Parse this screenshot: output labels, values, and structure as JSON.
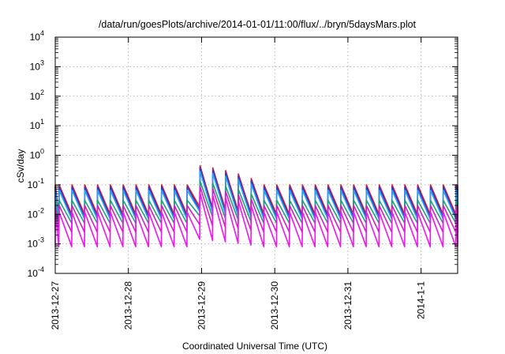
{
  "chart_data": {
    "type": "line",
    "title": "/data/run/goesPlots/archive/2014-01-01/11:00/flux/../bryn/5daysMars.plot",
    "xlabel": "Coordinated Universal Time (UTC)",
    "ylabel": "cSv/day",
    "y_scale": "log",
    "ylim": [
      0.0001,
      10000
    ],
    "y_ticks": [
      {
        "value": 0.0001,
        "base": "10",
        "exp": "-4"
      },
      {
        "value": 0.001,
        "base": "10",
        "exp": "-3"
      },
      {
        "value": 0.01,
        "base": "10",
        "exp": "-2"
      },
      {
        "value": 0.1,
        "base": "10",
        "exp": "-1"
      },
      {
        "value": 1,
        "base": "10",
        "exp": "0"
      },
      {
        "value": 10,
        "base": "10",
        "exp": "1"
      },
      {
        "value": 100,
        "base": "10",
        "exp": "2"
      },
      {
        "value": 1000,
        "base": "10",
        "exp": "3"
      },
      {
        "value": 10000,
        "base": "10",
        "exp": "4"
      }
    ],
    "x_ticks": [
      "2013-12-27",
      "2013-12-28",
      "2013-12-29",
      "2013-12-30",
      "2013-12-31",
      "2014-1-1"
    ],
    "xlim": [
      "2013-12-27",
      "2014-01-01T12:00"
    ],
    "grid": true,
    "legend": "none",
    "pulse_period_hours": 4.2,
    "series": [
      {
        "color": "#e8141c",
        "peak": 0.1,
        "trough": 0.01
      },
      {
        "color": "#1f3fd6",
        "peak": 0.085,
        "trough": 0.008
      },
      {
        "color": "#2a9df4",
        "peak": 0.065,
        "trough": 0.007
      },
      {
        "color": "#1aa37a",
        "peak": 0.03,
        "trough": 0.005
      },
      {
        "color": "#d11fc4",
        "peak": 0.02,
        "trough": 0.0025
      },
      {
        "color": "#f015f0",
        "peak": 0.012,
        "trough": 0.0008
      }
    ],
    "event": {
      "start": "2013-12-28T23:00",
      "end": "2013-12-29T20:00",
      "peak": 0.45
    }
  }
}
